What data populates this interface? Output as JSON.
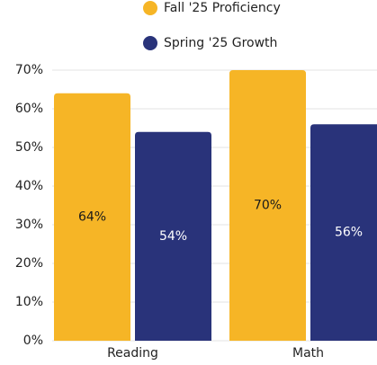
{
  "chart_data": {
    "type": "bar",
    "categories": [
      "Reading",
      "Math"
    ],
    "series": [
      {
        "name": "Fall '25 Proficiency",
        "color": "#f6b526",
        "values": [
          64,
          70
        ],
        "value_labels": [
          "64%",
          "70%"
        ]
      },
      {
        "name": "Spring '25 Growth",
        "color": "#29337a",
        "values": [
          54,
          56
        ],
        "value_labels": [
          "54%",
          "56%"
        ]
      }
    ],
    "ylim": [
      0,
      70
    ],
    "yticks": [
      {
        "value": 0,
        "label": "0%"
      },
      {
        "value": 10,
        "label": "10%"
      },
      {
        "value": 20,
        "label": "20%"
      },
      {
        "value": 30,
        "label": "30%"
      },
      {
        "value": 40,
        "label": "40%"
      },
      {
        "value": 50,
        "label": "50%"
      },
      {
        "value": 60,
        "label": "60%"
      },
      {
        "value": 70,
        "label": "70%"
      }
    ],
    "grid": true,
    "legend": "top"
  }
}
